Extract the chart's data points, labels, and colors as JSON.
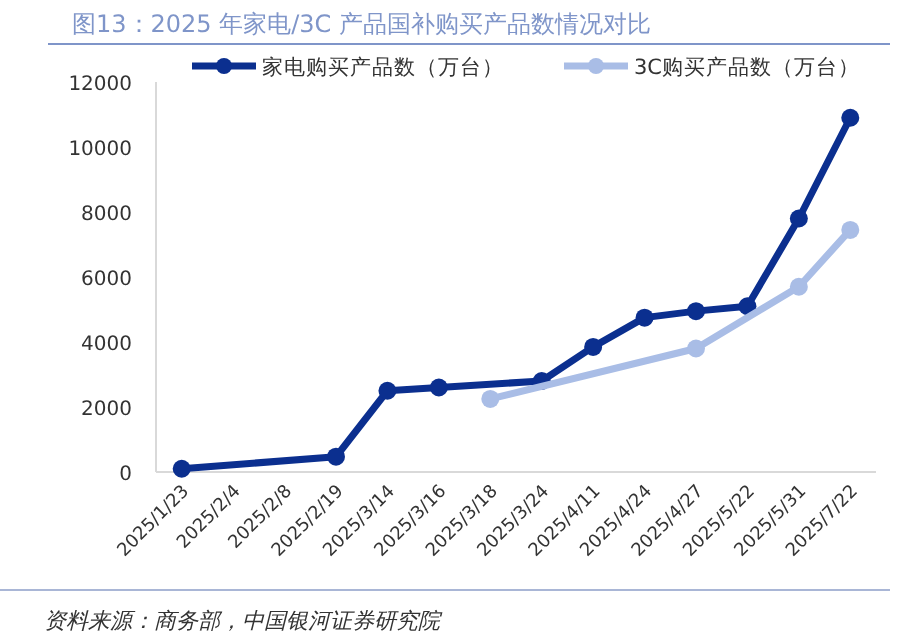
{
  "chart_data": {
    "type": "line",
    "title": "图13：2025 年家电/3C 产品国补购买产品数情况对比",
    "categories": [
      "2025/1/23",
      "2025/2/4",
      "2025/2/8",
      "2025/2/19",
      "2025/3/14",
      "2025/3/16",
      "2025/3/18",
      "2025/3/24",
      "2025/4/11",
      "2025/4/24",
      "2025/4/27",
      "2025/5/22",
      "2025/5/31",
      "2025/7/22"
    ],
    "series": [
      {
        "name": "家电购买产品数（万台）",
        "color": "#0b2f8f",
        "values": [
          100,
          null,
          null,
          470,
          2500,
          2600,
          null,
          2800,
          3850,
          4750,
          4950,
          5100,
          7800,
          10900
        ]
      },
      {
        "name": "3C购买产品数（万台）",
        "color": "#a9bde6",
        "values": [
          null,
          null,
          null,
          null,
          null,
          null,
          2250,
          null,
          null,
          null,
          3800,
          null,
          5700,
          7450
        ]
      }
    ],
    "ylim": [
      0,
      12000
    ],
    "yticks": [
      0,
      2000,
      4000,
      6000,
      8000,
      10000,
      12000
    ],
    "legend": "top",
    "marker": "circle",
    "line_style": "solid",
    "grid": false,
    "annotations": [
      "资料来源：商务部，中国银河证券研究院"
    ]
  }
}
